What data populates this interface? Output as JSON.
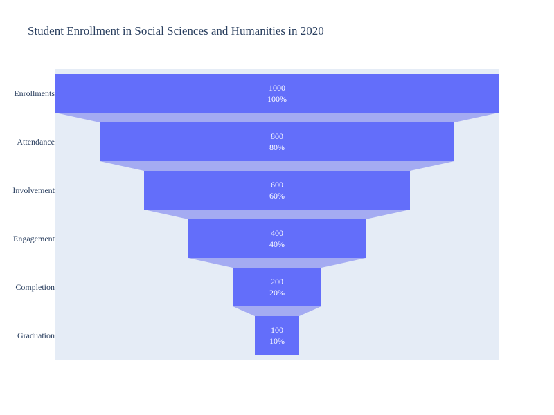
{
  "chart_data": {
    "type": "funnel",
    "title": "Student Enrollment in Social Sciences and Humanities in 2020",
    "categories": [
      "Enrollments",
      "Attendance",
      "Involvement",
      "Engagement",
      "Completion",
      "Graduation"
    ],
    "values": [
      1000,
      800,
      600,
      400,
      200,
      100
    ],
    "percent_labels": [
      "100%",
      "80%",
      "60%",
      "40%",
      "20%",
      "10%"
    ],
    "xlim": [
      -500,
      500
    ],
    "colors": {
      "bar": "#636efa",
      "connector": "#a4abf2",
      "plot_bg": "#e5ecf6",
      "text": "#2a3f5f",
      "data_label": "#ffffff"
    },
    "grid": false,
    "legend": "none"
  }
}
